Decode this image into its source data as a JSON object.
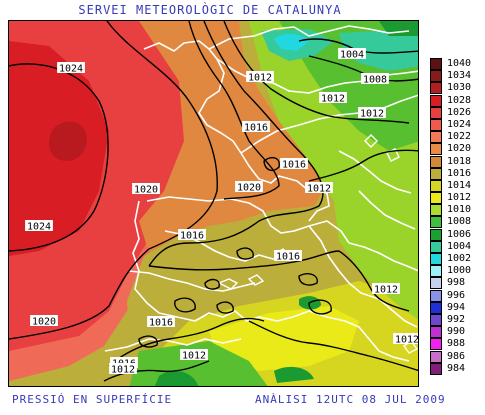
{
  "header": {
    "title": "SERVEI METEOROLÒGIC DE CATALUNYA"
  },
  "footer": {
    "left": "PRESSIÓ EN SUPERFÍCIE",
    "right": "ANÀLISI 12UTC 08 JUL 2009"
  },
  "map": {
    "variable": "Pressió en superfície (hPa)",
    "isobar_labels": [
      "1024",
      "1024",
      "1020",
      "1020",
      "1020",
      "1016",
      "1016",
      "1016",
      "1016",
      "1016",
      "1016",
      "1012",
      "1012",
      "1012",
      "1012",
      "1012",
      "1012",
      "1012",
      "1012",
      "1008",
      "1004"
    ],
    "colors": {
      "high": "#d81e24",
      "high_soft": "#e84040",
      "high_fringe": "#f06a58",
      "orange": "#e08840",
      "orange_light": "#e89850",
      "khaki": "#bcae3a",
      "khaki_dark": "#ae9e30",
      "yellow_green": "#d6d620",
      "yellow": "#eaea18",
      "green_light": "#9ad42a",
      "green": "#58c030",
      "green_dark": "#1a9a30",
      "teal": "#36c99a",
      "cyan": "#22d8e0",
      "coast": "#ffffff",
      "isobar": "#000000"
    }
  },
  "legend": {
    "unit": "hPa",
    "entries": [
      {
        "label": "1040",
        "color": "#5a1212"
      },
      {
        "label": "1034",
        "color": "#851c1c"
      },
      {
        "label": "1030",
        "color": "#b51e1e"
      },
      {
        "label": "1028",
        "color": "#d81e24"
      },
      {
        "label": "1026",
        "color": "#e84040"
      },
      {
        "label": "1024",
        "color": "#f05a4a"
      },
      {
        "label": "1022",
        "color": "#f27858"
      },
      {
        "label": "1020",
        "color": "#e88a48"
      },
      {
        "label": "1018",
        "color": "#d08a3a"
      },
      {
        "label": "1016",
        "color": "#bcae3a"
      },
      {
        "label": "1014",
        "color": "#d6d620"
      },
      {
        "label": "1012",
        "color": "#eaea18"
      },
      {
        "label": "1010",
        "color": "#a8dc30"
      },
      {
        "label": "1008",
        "color": "#40c040"
      },
      {
        "label": "1006",
        "color": "#1aa030"
      },
      {
        "label": "1004",
        "color": "#36c99a"
      },
      {
        "label": "1002",
        "color": "#22d8e0"
      },
      {
        "label": "1000",
        "color": "#9ef0f8"
      },
      {
        "label": "998",
        "color": "#c8d0f0"
      },
      {
        "label": "996",
        "color": "#8890e8"
      },
      {
        "label": "994",
        "color": "#2030d8"
      },
      {
        "label": "992",
        "color": "#7048d0"
      },
      {
        "label": "990",
        "color": "#c030d0"
      },
      {
        "label": "988",
        "color": "#f020f0"
      },
      {
        "label": "986",
        "color": "#c870c8"
      },
      {
        "label": "984",
        "color": "#802078"
      }
    ]
  }
}
